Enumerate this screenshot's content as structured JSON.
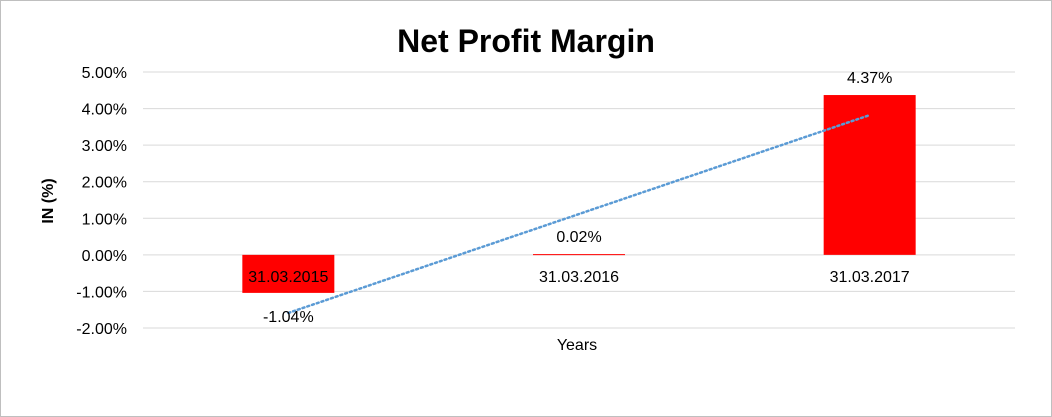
{
  "chart_data": {
    "type": "bar",
    "title": "Net Profit Margin",
    "xlabel": "Years",
    "ylabel": "IN (%)",
    "categories": [
      "31.03.2015",
      "31.03.2016",
      "31.03.2017"
    ],
    "values": [
      -1.04,
      0.02,
      4.37
    ],
    "data_labels": [
      "-1.04%",
      "0.02%",
      "4.37%"
    ],
    "ylim": [
      -2,
      5
    ],
    "y_ticks": [
      5,
      4,
      3,
      2,
      1,
      0,
      -1,
      -2
    ],
    "y_tick_labels": [
      "5.00%",
      "4.00%",
      "3.00%",
      "2.00%",
      "1.00%",
      "0.00%",
      "-1.00%",
      "-2.00%"
    ],
    "grid": true,
    "legend": "none",
    "trendline": {
      "type": "linear",
      "style": "dotted"
    },
    "colors": {
      "bar": "#ff0000",
      "trendline": "#5b9bd5",
      "grid": "#d9d9d9"
    }
  }
}
